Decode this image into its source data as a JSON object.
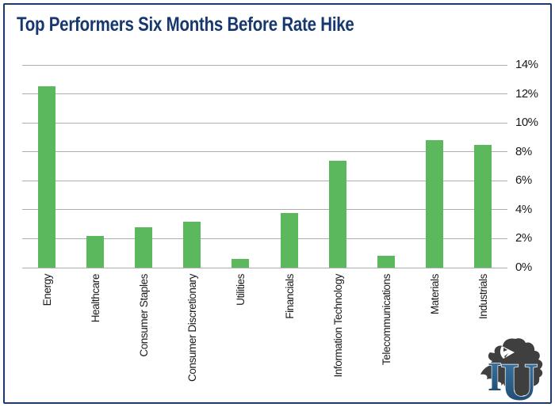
{
  "header": {
    "title": "Top Performers Six Months Before Rate Hike",
    "title_color": "#17386E"
  },
  "frame": {
    "border_color": "#1B3A6B"
  },
  "logo": {
    "icon": "lion-icon",
    "letter_i": "I",
    "letter_u": "U",
    "letters_color": "#2E6191",
    "lion_color": "#3F3F3F"
  },
  "chart_data": {
    "type": "bar",
    "title": "Top Performers Six Months Before Rate Hike",
    "categories": [
      "Energy",
      "Healthcare",
      "Consumer Staples",
      "Consumer Discretionary",
      "Utilities",
      "Financials",
      "Information Technology",
      "Telecommunications",
      "Materials",
      "Industrials"
    ],
    "values": [
      12.5,
      2.2,
      2.8,
      3.2,
      0.6,
      3.8,
      7.4,
      0.8,
      8.8,
      8.5
    ],
    "unit": "%",
    "bar_color": "#5CB85C",
    "gridline_color": "#ADADAD",
    "xlabel": "",
    "ylabel": "",
    "ylim": [
      0,
      14
    ],
    "ytick_step": 2,
    "ytick_labels": [
      "0%",
      "2%",
      "4%",
      "6%",
      "8%",
      "10%",
      "12%",
      "14%"
    ],
    "yaxis_side": "right",
    "grid": true,
    "legend": false,
    "x_tick_rotation": 90
  }
}
